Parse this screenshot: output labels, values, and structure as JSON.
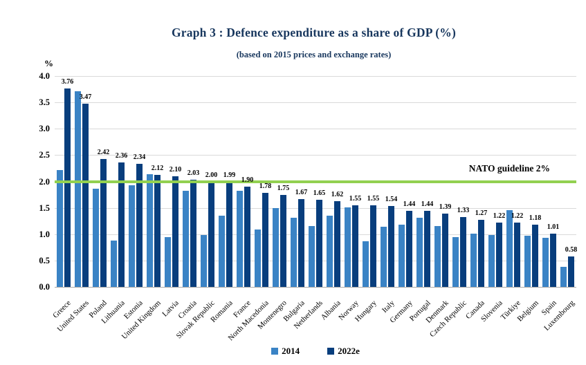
{
  "chart_data": {
    "type": "bar",
    "title": "Graph 3 : Defence expenditure as a share of GDP (%)",
    "subtitle": "(based on 2015 prices and exchange rates)",
    "y_axis_unit_label": "%",
    "xlabel": "",
    "ylabel": "%",
    "ylim": [
      0,
      4.0
    ],
    "ytick_step": 0.5,
    "grid": true,
    "legend_position": "bottom",
    "guideline": {
      "label": "NATO guideline 2%",
      "value": 2.0,
      "color": "#92D050"
    },
    "categories": [
      "Greece",
      "United States",
      "Poland",
      "Lithuania",
      "Estonia",
      "United Kingdom",
      "Latvia",
      "Croatia",
      "Slovak Republic",
      "Romania",
      "France",
      "North Macedonia",
      "Montenegro",
      "Bulgaria",
      "Netherlands",
      "Albania",
      "Norway",
      "Hungary",
      "Italy",
      "Germany",
      "Portugal",
      "Denmark",
      "Czech Republic",
      "Canada",
      "Slovenia",
      "Türkiye",
      "Belgium",
      "Spain",
      "Luxembourg"
    ],
    "series": [
      {
        "name": "2014",
        "color": "#3A83C5",
        "show_labels": false,
        "values": [
          2.22,
          3.71,
          1.86,
          0.88,
          1.93,
          2.14,
          0.94,
          1.82,
          0.99,
          1.35,
          1.82,
          1.09,
          1.5,
          1.31,
          1.15,
          1.35,
          1.51,
          0.86,
          1.14,
          1.18,
          1.31,
          1.15,
          0.94,
          1.01,
          0.98,
          1.45,
          0.97,
          0.93,
          0.38
        ]
      },
      {
        "name": "2022e",
        "color": "#083E7D",
        "show_labels": true,
        "values": [
          3.76,
          3.47,
          2.42,
          2.36,
          2.34,
          2.12,
          2.1,
          2.03,
          2.0,
          1.99,
          1.9,
          1.78,
          1.75,
          1.67,
          1.65,
          1.62,
          1.55,
          1.55,
          1.54,
          1.44,
          1.44,
          1.39,
          1.33,
          1.27,
          1.22,
          1.22,
          1.18,
          1.01,
          0.58
        ]
      }
    ],
    "styles": {
      "title_color": "#17365D",
      "text_color": "#000000",
      "gridline_color": "#D9D9D9",
      "axis_color": "#A6A6A6"
    }
  }
}
